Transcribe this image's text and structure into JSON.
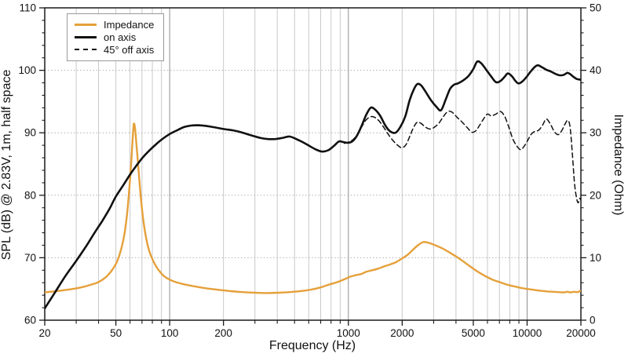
{
  "chart_data": {
    "type": "line",
    "title": "",
    "x_axis": {
      "label": "Frequency (Hz)",
      "scale": "log",
      "min": 20,
      "max": 20000,
      "labeled_ticks": [
        {
          "f": 20,
          "label": "20"
        },
        {
          "f": 50,
          "label": "50"
        },
        {
          "f": 100,
          "label": "100"
        },
        {
          "f": 200,
          "label": "200"
        },
        {
          "f": 1000,
          "label": "1000"
        },
        {
          "f": 2000,
          "label": "2000"
        },
        {
          "f": 5000,
          "label": "5000"
        },
        {
          "f": 10000,
          "label": "10000"
        },
        {
          "f": 20000,
          "label": "20000"
        }
      ],
      "minor_ticks": [
        30,
        40,
        60,
        70,
        80,
        90,
        300,
        400,
        500,
        600,
        700,
        800,
        900,
        3000,
        4000,
        6000,
        7000,
        8000,
        9000
      ],
      "decade_gridlines": [
        100,
        1000,
        10000
      ]
    },
    "y_left": {
      "label": "SPL (dB) @ 2.83V, 1m, half space",
      "min": 60,
      "max": 110,
      "major_step": 10,
      "minor_step": 2,
      "major_ticks": [
        60,
        70,
        80,
        90,
        100,
        110
      ]
    },
    "y_right": {
      "label": "Impedance (Ohm)",
      "min": 0,
      "max": 50,
      "major_step": 10,
      "minor_step": 2,
      "major_ticks": [
        0,
        10,
        20,
        30,
        40,
        50
      ]
    },
    "grid": {
      "minor_vline_color": "#c9c9c9",
      "decade_vline_color": "#8f8f8f",
      "hline_color": "#b0b0b0",
      "frame_color": "#1a1a1a"
    },
    "legend_position": "top-left",
    "series": [
      {
        "name": "Impedance",
        "axis": "right",
        "color": "#E5A03A",
        "style": "solid",
        "width": 2.4,
        "points": [
          [
            20,
            4.45
          ],
          [
            24,
            4.7
          ],
          [
            28,
            4.95
          ],
          [
            32,
            5.25
          ],
          [
            36,
            5.65
          ],
          [
            40,
            6.1
          ],
          [
            44,
            6.9
          ],
          [
            47,
            7.8
          ],
          [
            50,
            9.0
          ],
          [
            52,
            10.2
          ],
          [
            54,
            11.8
          ],
          [
            56,
            14.0
          ],
          [
            58,
            17.5
          ],
          [
            60,
            22.5
          ],
          [
            61,
            25.5
          ],
          [
            62,
            28.8
          ],
          [
            63,
            31.4
          ],
          [
            64,
            30.7
          ],
          [
            65,
            28.6
          ],
          [
            67,
            24.0
          ],
          [
            69,
            19.6
          ],
          [
            71,
            16.3
          ],
          [
            74,
            13.0
          ],
          [
            77,
            11.0
          ],
          [
            80,
            9.8
          ],
          [
            84,
            8.6
          ],
          [
            88,
            7.8
          ],
          [
            93,
            7.05
          ],
          [
            100,
            6.5
          ],
          [
            108,
            6.1
          ],
          [
            118,
            5.8
          ],
          [
            130,
            5.55
          ],
          [
            145,
            5.3
          ],
          [
            165,
            5.05
          ],
          [
            190,
            4.85
          ],
          [
            220,
            4.65
          ],
          [
            255,
            4.5
          ],
          [
            300,
            4.4
          ],
          [
            350,
            4.35
          ],
          [
            410,
            4.4
          ],
          [
            470,
            4.5
          ],
          [
            540,
            4.65
          ],
          [
            620,
            4.9
          ],
          [
            700,
            5.25
          ],
          [
            780,
            5.7
          ],
          [
            870,
            6.1
          ],
          [
            950,
            6.55
          ],
          [
            1020,
            6.95
          ],
          [
            1100,
            7.2
          ],
          [
            1180,
            7.4
          ],
          [
            1260,
            7.75
          ],
          [
            1340,
            7.95
          ],
          [
            1450,
            8.2
          ],
          [
            1550,
            8.5
          ],
          [
            1700,
            8.9
          ],
          [
            1850,
            9.3
          ],
          [
            2000,
            9.9
          ],
          [
            2150,
            10.5
          ],
          [
            2300,
            11.3
          ],
          [
            2450,
            12.0
          ],
          [
            2620,
            12.5
          ],
          [
            2800,
            12.4
          ],
          [
            3000,
            12.1
          ],
          [
            3300,
            11.6
          ],
          [
            3600,
            11.0
          ],
          [
            4000,
            10.2
          ],
          [
            4400,
            9.4
          ],
          [
            4800,
            8.6
          ],
          [
            5300,
            7.75
          ],
          [
            5800,
            7.1
          ],
          [
            6400,
            6.5
          ],
          [
            7000,
            6.1
          ],
          [
            7700,
            5.7
          ],
          [
            8500,
            5.4
          ],
          [
            9300,
            5.15
          ],
          [
            10000,
            5.0
          ],
          [
            11000,
            4.85
          ],
          [
            12000,
            4.7
          ],
          [
            13000,
            4.6
          ],
          [
            14000,
            4.55
          ],
          [
            15000,
            4.5
          ],
          [
            16000,
            4.45
          ],
          [
            16800,
            4.55
          ],
          [
            17500,
            4.45
          ],
          [
            18300,
            4.55
          ],
          [
            19200,
            4.5
          ],
          [
            19700,
            4.65
          ],
          [
            20000,
            4.7
          ]
        ]
      },
      {
        "name": "on axis",
        "axis": "left",
        "color": "#111111",
        "style": "solid",
        "width": 2.6,
        "points": [
          [
            20,
            61.9
          ],
          [
            23,
            64.6
          ],
          [
            26,
            67.0
          ],
          [
            30,
            69.5
          ],
          [
            34,
            71.8
          ],
          [
            38,
            74.0
          ],
          [
            42,
            75.9
          ],
          [
            46,
            77.8
          ],
          [
            50,
            79.8
          ],
          [
            55,
            81.6
          ],
          [
            60,
            83.3
          ],
          [
            65,
            84.7
          ],
          [
            70,
            85.9
          ],
          [
            76,
            87.0
          ],
          [
            82,
            87.9
          ],
          [
            90,
            88.9
          ],
          [
            100,
            89.8
          ],
          [
            110,
            90.4
          ],
          [
            120,
            90.9
          ],
          [
            132,
            91.15
          ],
          [
            145,
            91.2
          ],
          [
            160,
            91.1
          ],
          [
            180,
            90.85
          ],
          [
            200,
            90.6
          ],
          [
            225,
            90.4
          ],
          [
            250,
            90.1
          ],
          [
            285,
            89.6
          ],
          [
            320,
            89.2
          ],
          [
            355,
            89.0
          ],
          [
            390,
            89.0
          ],
          [
            430,
            89.2
          ],
          [
            470,
            89.4
          ],
          [
            520,
            88.9
          ],
          [
            580,
            88.2
          ],
          [
            650,
            87.4
          ],
          [
            710,
            87.0
          ],
          [
            770,
            87.2
          ],
          [
            830,
            87.9
          ],
          [
            885,
            88.6
          ],
          [
            940,
            88.5
          ],
          [
            1000,
            88.4
          ],
          [
            1060,
            88.7
          ],
          [
            1120,
            89.6
          ],
          [
            1190,
            91.2
          ],
          [
            1260,
            92.9
          ],
          [
            1330,
            94.0
          ],
          [
            1400,
            93.8
          ],
          [
            1500,
            92.8
          ],
          [
            1600,
            91.3
          ],
          [
            1700,
            90.3
          ],
          [
            1830,
            90.0
          ],
          [
            1950,
            90.9
          ],
          [
            2080,
            92.6
          ],
          [
            2200,
            95.2
          ],
          [
            2320,
            96.9
          ],
          [
            2430,
            97.8
          ],
          [
            2550,
            97.6
          ],
          [
            2700,
            96.6
          ],
          [
            2900,
            95.2
          ],
          [
            3100,
            94.2
          ],
          [
            3300,
            93.6
          ],
          [
            3500,
            95.3
          ],
          [
            3700,
            97.0
          ],
          [
            3900,
            97.7
          ],
          [
            4100,
            97.9
          ],
          [
            4400,
            98.4
          ],
          [
            4700,
            99.1
          ],
          [
            5000,
            100.2
          ],
          [
            5260,
            101.4
          ],
          [
            5550,
            101.1
          ],
          [
            5900,
            100.1
          ],
          [
            6300,
            99.0
          ],
          [
            6700,
            98.1
          ],
          [
            7100,
            98.3
          ],
          [
            7500,
            99.0
          ],
          [
            7800,
            99.5
          ],
          [
            8200,
            99.1
          ],
          [
            8600,
            98.3
          ],
          [
            8950,
            97.9
          ],
          [
            9400,
            98.2
          ],
          [
            9900,
            98.9
          ],
          [
            10400,
            99.7
          ],
          [
            11000,
            100.5
          ],
          [
            11500,
            100.8
          ],
          [
            12100,
            100.5
          ],
          [
            12800,
            100.1
          ],
          [
            13600,
            99.8
          ],
          [
            14500,
            99.4
          ],
          [
            15300,
            99.2
          ],
          [
            16100,
            99.3
          ],
          [
            16800,
            99.6
          ],
          [
            17400,
            99.4
          ],
          [
            18100,
            99.0
          ],
          [
            19000,
            98.6
          ],
          [
            20000,
            98.5
          ]
        ]
      },
      {
        "name": "45° off axis",
        "axis": "left",
        "color": "#111111",
        "style": "dashed",
        "width": 1.5,
        "points": [
          [
            950,
            88.3
          ],
          [
            1000,
            88.5
          ],
          [
            1060,
            88.9
          ],
          [
            1120,
            89.7
          ],
          [
            1190,
            91.0
          ],
          [
            1260,
            92.1
          ],
          [
            1350,
            92.6
          ],
          [
            1450,
            92.2
          ],
          [
            1550,
            91.2
          ],
          [
            1650,
            90.0
          ],
          [
            1760,
            88.9
          ],
          [
            1870,
            88.1
          ],
          [
            1990,
            87.6
          ],
          [
            2100,
            88.1
          ],
          [
            2210,
            89.5
          ],
          [
            2320,
            90.9
          ],
          [
            2430,
            91.7
          ],
          [
            2550,
            91.5
          ],
          [
            2700,
            90.9
          ],
          [
            2850,
            90.6
          ],
          [
            3000,
            90.8
          ],
          [
            3200,
            91.5
          ],
          [
            3400,
            92.6
          ],
          [
            3600,
            93.4
          ],
          [
            3800,
            93.3
          ],
          [
            4050,
            92.5
          ],
          [
            4300,
            91.8
          ],
          [
            4600,
            90.9
          ],
          [
            4900,
            90.1
          ],
          [
            5150,
            90.3
          ],
          [
            5400,
            91.1
          ],
          [
            5700,
            92.2
          ],
          [
            6000,
            93.0
          ],
          [
            6300,
            92.7
          ],
          [
            6700,
            93.0
          ],
          [
            7100,
            93.4
          ],
          [
            7500,
            92.6
          ],
          [
            7900,
            90.9
          ],
          [
            8300,
            89.1
          ],
          [
            8700,
            88.0
          ],
          [
            9200,
            87.3
          ],
          [
            9600,
            87.8
          ],
          [
            10000,
            88.6
          ],
          [
            10500,
            89.7
          ],
          [
            11000,
            90.2
          ],
          [
            11600,
            90.4
          ],
          [
            12200,
            91.2
          ],
          [
            12800,
            92.2
          ],
          [
            13500,
            91.4
          ],
          [
            14200,
            90.2
          ],
          [
            14900,
            89.7
          ],
          [
            15600,
            90.3
          ],
          [
            16300,
            91.4
          ],
          [
            16900,
            92.0
          ],
          [
            17400,
            90.9
          ],
          [
            17900,
            86.8
          ],
          [
            18400,
            82.0
          ],
          [
            18900,
            79.6
          ],
          [
            19300,
            78.8
          ],
          [
            19700,
            79.5
          ],
          [
            20000,
            79.2
          ]
        ]
      }
    ]
  }
}
